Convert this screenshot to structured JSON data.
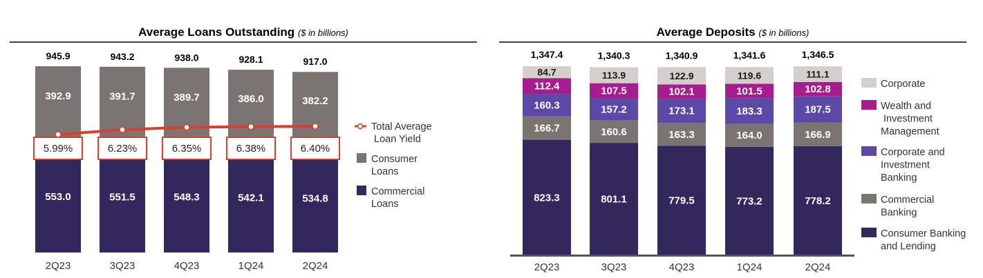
{
  "chart_data": [
    {
      "type": "bar",
      "title": "Average Loans Outstanding",
      "subtitle": "($ in billions)",
      "categories": [
        "2Q23",
        "3Q23",
        "4Q23",
        "1Q24",
        "2Q24"
      ],
      "totals": [
        "945.9",
        "943.2",
        "938.0",
        "928.1",
        "917.0"
      ],
      "series": [
        {
          "name": "Commercial Loans",
          "color": "#33285e",
          "values": [
            553.0,
            551.5,
            548.3,
            542.1,
            534.8
          ],
          "labels": [
            "553.0",
            "551.5",
            "548.3",
            "542.1",
            "534.8"
          ]
        },
        {
          "name": "Consumer Loans",
          "color": "#7c7473",
          "values": [
            392.9,
            391.7,
            389.7,
            386.0,
            382.2
          ],
          "labels": [
            "392.9",
            "391.7",
            "389.7",
            "386.0",
            "382.2"
          ]
        }
      ],
      "line": {
        "name": "Total Average Loan Yield",
        "color": "#d7402f",
        "values": [
          5.99,
          6.23,
          6.35,
          6.38,
          6.4
        ],
        "labels": [
          "5.99%",
          "6.23%",
          "6.35%",
          "6.38%",
          "6.40%"
        ]
      },
      "legend": [
        "Total Average Loan Yield",
        "Consumer Loans",
        "Commercial Loans"
      ],
      "legend_placement": "right",
      "grid": false
    },
    {
      "type": "bar",
      "title": "Average Deposits",
      "subtitle": "($ in billions)",
      "categories": [
        "2Q23",
        "3Q23",
        "4Q23",
        "1Q24",
        "2Q24"
      ],
      "totals": [
        "1,347.4",
        "1,340.3",
        "1,340.9",
        "1,341.6",
        "1,346.5"
      ],
      "series": [
        {
          "name": "Consumer Banking and Lending",
          "color": "#33285e",
          "values": [
            823.3,
            801.1,
            779.5,
            773.2,
            778.2
          ],
          "labels": [
            "823.3",
            "801.1",
            "779.5",
            "773.2",
            "778.2"
          ]
        },
        {
          "name": "Commercial Banking",
          "color": "#7c7473",
          "values": [
            166.7,
            160.6,
            163.3,
            164.0,
            166.9
          ],
          "labels": [
            "166.7",
            "160.6",
            "163.3",
            "164.0",
            "166.9"
          ]
        },
        {
          "name": "Corporate and Investment Banking",
          "color": "#5c48a6",
          "values": [
            160.3,
            157.2,
            173.1,
            183.3,
            187.5
          ],
          "labels": [
            "160.3",
            "157.2",
            "173.1",
            "183.3",
            "187.5"
          ]
        },
        {
          "name": "Wealth and Investment Management",
          "color": "#a81d8d",
          "values": [
            112.4,
            107.5,
            102.1,
            101.5,
            102.8
          ],
          "labels": [
            "112.4",
            "107.5",
            "102.1",
            "101.5",
            "102.8"
          ]
        },
        {
          "name": "Corporate",
          "color": "#d4cecd",
          "values": [
            84.7,
            113.9,
            122.9,
            119.6,
            111.1
          ],
          "labels": [
            "84.7",
            "113.9",
            "122.9",
            "119.6",
            "111.1"
          ]
        }
      ],
      "legend": [
        "Corporate",
        "Wealth and Investment Management",
        "Corporate and Investment Banking",
        "Commercial Banking",
        "Consumer Banking and Lending"
      ],
      "legend_placement": "right",
      "grid": false
    }
  ]
}
